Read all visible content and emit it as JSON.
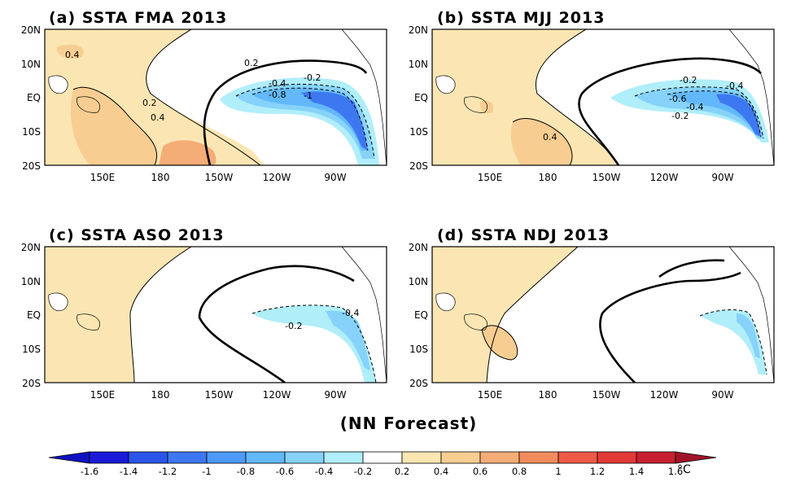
{
  "panels": [
    {
      "label": "(a) SSTA  FMA 2013"
    },
    {
      "label": "(b) SSTA  MJJ 2013"
    },
    {
      "label": "(c) SSTA  ASO 2013"
    },
    {
      "label": "(d) SSTA  NDJ 2013"
    }
  ],
  "lat_ticks": [
    "20N",
    "10N",
    "EQ",
    "10S",
    "20S"
  ],
  "lon_ticks": [
    "150E",
    "180",
    "150W",
    "120W",
    "90W"
  ],
  "contour_labels": {
    "a": [
      "0.4",
      "0.2",
      "0.2",
      "0.4",
      "-0.4",
      "-0.2",
      "-0.8",
      "-1"
    ],
    "b": [
      "-0.2",
      "-0.4",
      "-0.6",
      "-0.4",
      "-0.2",
      "0.4"
    ],
    "c": [
      "-0.4",
      "-0.2"
    ],
    "d": []
  },
  "subtitle": "(NN Forecast)",
  "colorbar": {
    "labels": [
      "-1.6",
      "-1.4",
      "-1.2",
      "-1",
      "-0.8",
      "-0.6",
      "-0.4",
      "-0.2",
      "0.2",
      "0.4",
      "0.6",
      "0.8",
      "1",
      "1.2",
      "1.4",
      "1.6"
    ],
    "colors": [
      "#1a1ad8",
      "#2a55e8",
      "#3d78f0",
      "#4d9af8",
      "#62b8fb",
      "#86d2fa",
      "#b0eefa",
      "#ffffff",
      "#fbe6b3",
      "#f8cd92",
      "#f5ad77",
      "#f28c5c",
      "#ee5a47",
      "#e23a38",
      "#c82030"
    ],
    "under_color": "#1010c0",
    "over_color": "#a01428",
    "unit": "°C"
  }
}
